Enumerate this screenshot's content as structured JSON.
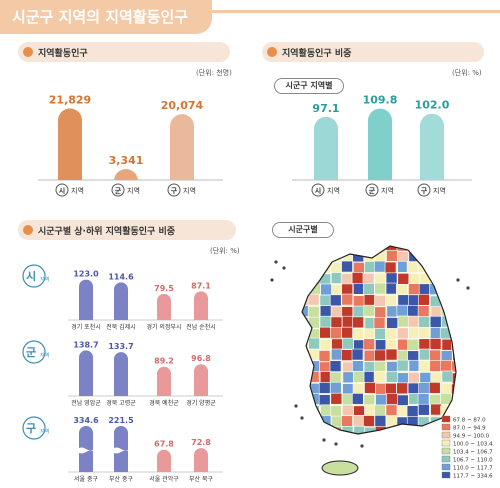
{
  "header": {
    "title": "시군구 지역의 지역활동인구"
  },
  "sections": {
    "population": {
      "title": "지역활동인구",
      "unit": "(단위: 천명)"
    },
    "ratio": {
      "title": "지역활동인구 비중",
      "unit": "(단위: %)",
      "sub_label": "시군구 지역별"
    },
    "top_bottom": {
      "title": "시군구별 상·하위 지역활동인구 비중",
      "unit": "(단위: %)"
    },
    "map": {
      "title": "시군구별"
    }
  },
  "map_legend": [
    {
      "label": "67.8 ~ 87.0",
      "color": "#c0392b"
    },
    {
      "label": "87.0 ~ 94.9",
      "color": "#e8795f"
    },
    {
      "label": "94.9 ~ 100.0",
      "color": "#f4c7b0"
    },
    {
      "label": "100.0 ~ 103.4",
      "color": "#f6efb8"
    },
    {
      "label": "103.4 ~ 106.7",
      "color": "#c9dfa0"
    },
    {
      "label": "106.7 ~ 110.0",
      "color": "#8ec9c0"
    },
    {
      "label": "110.0 ~ 117.7",
      "color": "#6f9fd6"
    },
    {
      "label": "117.7 ~ 334.6",
      "color": "#3d57a8"
    }
  ],
  "chart_data": [
    {
      "type": "bar",
      "title": "지역활동인구",
      "unit": "(단위: 천명)",
      "categories": [
        {
          "badge": "시",
          "label": "지역"
        },
        {
          "badge": "군",
          "label": "지역"
        },
        {
          "badge": "구",
          "label": "지역"
        }
      ],
      "values": [
        21829,
        3341,
        20074
      ],
      "value_labels": [
        "21,829",
        "3,341",
        "20,074"
      ],
      "colors": [
        "#e0905a",
        "#e8a77a",
        "#eab89a"
      ],
      "ylim": [
        0,
        25000
      ]
    },
    {
      "type": "bar",
      "title": "지역활동인구 비중",
      "unit": "(단위: %)",
      "categories": [
        {
          "badge": "시",
          "label": "지역"
        },
        {
          "badge": "군",
          "label": "지역"
        },
        {
          "badge": "구",
          "label": "지역"
        }
      ],
      "values": [
        97.1,
        109.8,
        102.0
      ],
      "value_labels": [
        "97.1",
        "109.8",
        "102.0"
      ],
      "colors": [
        "#9bd8d6",
        "#7fcfcb",
        "#a3dbd8"
      ],
      "ylim": [
        0,
        120
      ]
    },
    {
      "type": "bar",
      "title": "시군구별 상·하위 지역활동인구 비중",
      "unit": "(단위: %)",
      "groups": [
        {
          "group": "시",
          "group_label": "지역",
          "regions": [
            "경기 포천시",
            "전북 김제시",
            "경기 의정부시",
            "전남 순천시"
          ],
          "values": [
            123.0,
            114.6,
            79.5,
            87.1
          ],
          "value_labels": [
            "123.0",
            "114.6",
            "79.5",
            "87.1"
          ]
        },
        {
          "group": "군",
          "group_label": "지역",
          "regions": [
            "전남 영암군",
            "경북 고령군",
            "경북 예천군",
            "경기 양평군"
          ],
          "values": [
            138.7,
            133.7,
            89.2,
            96.8
          ],
          "value_labels": [
            "138.7",
            "133.7",
            "89.2",
            "96.8"
          ]
        },
        {
          "group": "구",
          "group_label": "지역",
          "regions": [
            "서울 중구",
            "부산 중구",
            "서울 관악구",
            "부산 북구"
          ],
          "values": [
            334.6,
            221.5,
            67.8,
            72.8
          ],
          "value_labels": [
            "334.6",
            "221.5",
            "67.8",
            "72.8"
          ]
        }
      ],
      "colors": {
        "top": "#7b83c4",
        "bottom": "#e89a9a"
      }
    }
  ]
}
